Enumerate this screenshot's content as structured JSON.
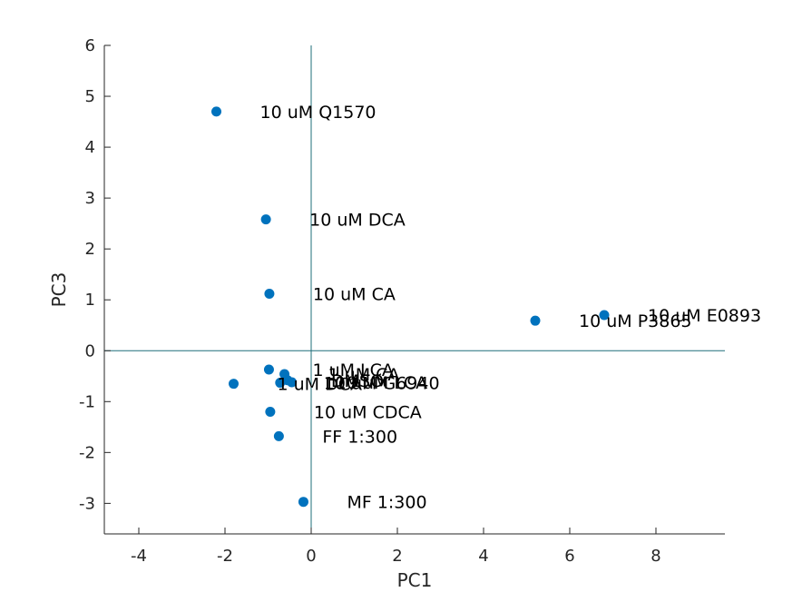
{
  "chart_data": {
    "type": "scatter",
    "xlabel": "PC1",
    "ylabel": "PC3",
    "xlim": [
      -4.8,
      9.6
    ],
    "ylim": [
      -3.6,
      6
    ],
    "xticks": [
      -4,
      -2,
      0,
      2,
      4,
      6,
      8
    ],
    "yticks": [
      -3,
      -2,
      -1,
      0,
      1,
      2,
      3,
      4,
      5,
      6
    ],
    "marker_color": "#0072BD",
    "axis_color": "#262626",
    "crosshair_color": "#1F6F7A",
    "grid": false,
    "points": [
      {
        "x": -2.2,
        "y": 4.7,
        "label": "10 uM Q1570"
      },
      {
        "x": -1.05,
        "y": 2.58,
        "label": "10 uM DCA"
      },
      {
        "x": -0.97,
        "y": 1.12,
        "label": "10 uM CA"
      },
      {
        "x": 6.8,
        "y": 0.7,
        "label": "10 uM E0893"
      },
      {
        "x": 5.2,
        "y": 0.59,
        "label": "10 uM P3865"
      },
      {
        "x": -0.98,
        "y": -0.37,
        "label": "1 uM LCA"
      },
      {
        "x": -0.62,
        "y": -0.46,
        "label": "1 uM CA"
      },
      {
        "x": -0.55,
        "y": -0.58,
        "label": "DMSO"
      },
      {
        "x": -0.45,
        "y": -0.62,
        "label": "10 uM LCA"
      },
      {
        "x": -0.72,
        "y": -0.63,
        "label": "10 uM G6940"
      },
      {
        "x": -1.8,
        "y": -0.65,
        "label": "1 uM DCA"
      },
      {
        "x": -0.95,
        "y": -1.2,
        "label": "10 uM CDCA"
      },
      {
        "x": -0.75,
        "y": -1.68,
        "label": "FF 1:300"
      },
      {
        "x": -0.18,
        "y": -2.97,
        "label": "MF 1:300"
      }
    ]
  }
}
